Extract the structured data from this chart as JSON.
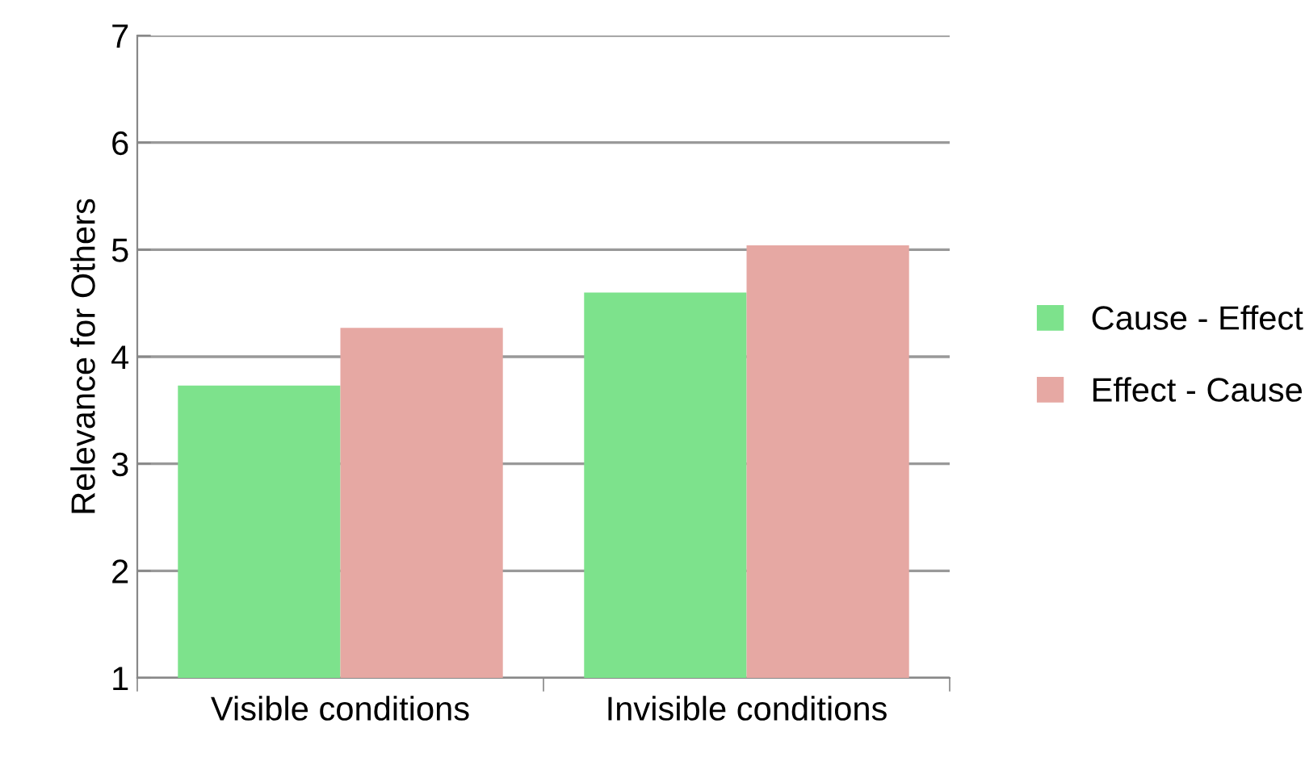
{
  "chart_data": {
    "type": "bar",
    "ylabel": "Relevance for Others",
    "categories": [
      "Visible conditions",
      "Invisible conditions"
    ],
    "series": [
      {
        "name": "Cause - Effect",
        "color": "#7de28c",
        "values": [
          3.73,
          4.6
        ]
      },
      {
        "name": "Effect - Cause",
        "color": "#e6a8a3",
        "values": [
          4.27,
          5.04
        ]
      }
    ],
    "ylim": [
      1,
      7
    ],
    "yticks": [
      1,
      2,
      3,
      4,
      5,
      6,
      7
    ],
    "grid": "y",
    "legend": "right"
  }
}
